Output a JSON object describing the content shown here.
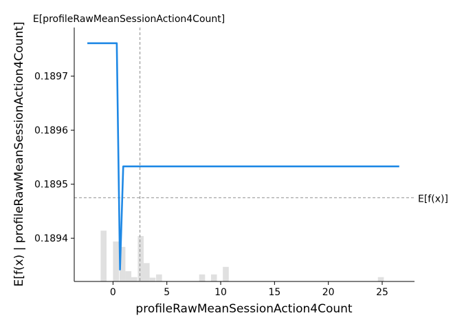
{
  "chart_data": {
    "type": "line",
    "xlabel": "profileRawMeanSessionAction4Count",
    "ylabel": "E[f(x) | profileRawMeanSessionAction4Count]",
    "xlim": [
      -3.6,
      28.0
    ],
    "ylim": [
      0.18932,
      0.18979
    ],
    "x_ticks": [
      0,
      5,
      10,
      15,
      20,
      25
    ],
    "x_tick_labels": [
      "0",
      "5",
      "10",
      "15",
      "20",
      "25"
    ],
    "y_ticks": [
      0.1894,
      0.1895,
      0.1896,
      0.1897
    ],
    "y_tick_labels": [
      "0.1894",
      "0.1895",
      "0.1896",
      "0.1897"
    ],
    "grid": false,
    "series": [
      {
        "color": "#1e88e5",
        "x": [
          -2.3,
          0.35,
          0.65,
          0.95,
          26.5
        ],
        "y": [
          0.189761,
          0.189761,
          0.189342,
          0.189533,
          0.189533
        ]
      }
    ],
    "histogram": {
      "color": "#e0e0e0",
      "bin_width": 0.55,
      "bin_starts": [
        -1.15,
        0.0,
        0.6,
        1.15,
        1.7,
        2.3,
        2.85,
        3.4,
        4.0,
        8.0,
        9.1,
        10.2,
        24.6
      ],
      "heights": [
        0.189414,
        0.189394,
        0.189384,
        0.189339,
        0.189328,
        0.189404,
        0.189354,
        0.189327,
        0.189333,
        0.189333,
        0.189333,
        0.189347,
        0.189328
      ]
    },
    "annotations": [
      {
        "id": "expected-x",
        "label": "E[profileRawMeanSessionAction4Count]",
        "x": 2.5,
        "orientation": "vertical",
        "color": "#999999"
      },
      {
        "id": "expected-fx",
        "label": "E[f(x)]",
        "y": 0.189475,
        "orientation": "horizontal",
        "color": "#999999"
      }
    ]
  }
}
